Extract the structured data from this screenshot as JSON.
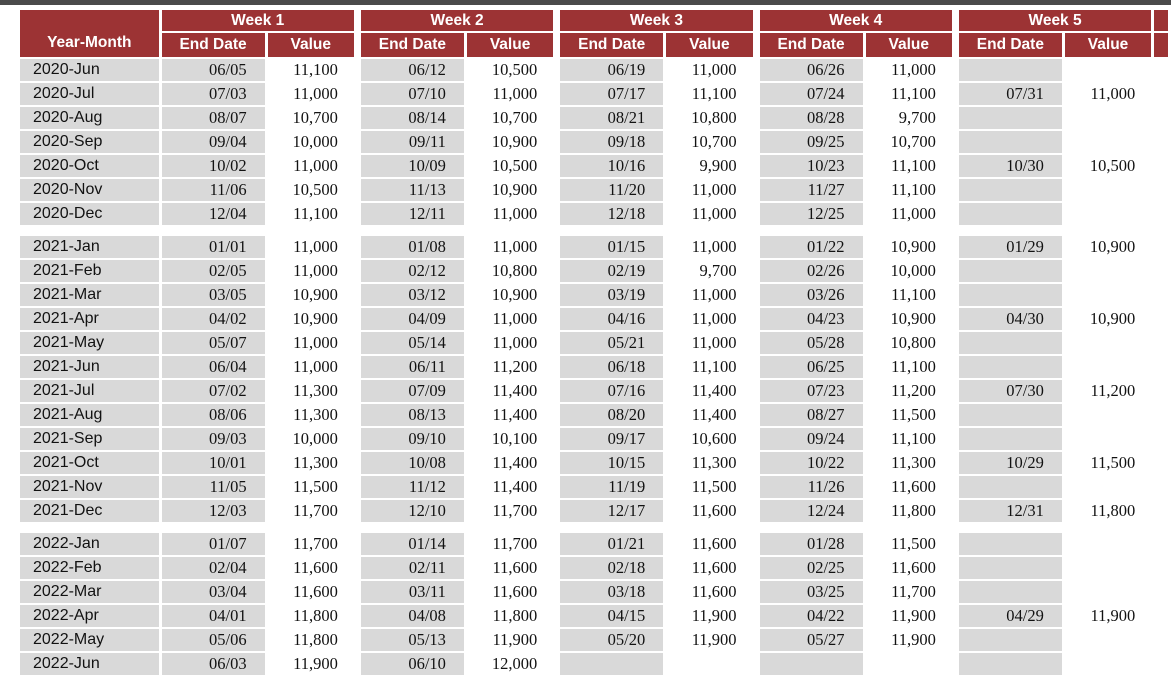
{
  "colors": {
    "header_bg": "#9c3334",
    "header_text": "#ffffff",
    "label_cell_bg": "#d9d9d9",
    "value_cell_bg": "#ffffff",
    "top_bar": "#4a4a4a",
    "data_text": "#121212"
  },
  "table": {
    "row_label_header": "Year-Month",
    "week_headers": [
      "Week 1",
      "Week 2",
      "Week 3",
      "Week 4",
      "Week 5"
    ],
    "sub_headers": {
      "end_date": "End Date",
      "value": "Value"
    },
    "sections": [
      {
        "year": "2020",
        "rows": [
          {
            "label": "2020-Jun",
            "weeks": [
              [
                "06/05",
                "11,100"
              ],
              [
                "06/12",
                "10,500"
              ],
              [
                "06/19",
                "11,000"
              ],
              [
                "06/26",
                "11,000"
              ],
              [
                "",
                ""
              ]
            ]
          },
          {
            "label": "2020-Jul",
            "weeks": [
              [
                "07/03",
                "11,000"
              ],
              [
                "07/10",
                "11,000"
              ],
              [
                "07/17",
                "11,100"
              ],
              [
                "07/24",
                "11,100"
              ],
              [
                "07/31",
                "11,000"
              ]
            ]
          },
          {
            "label": "2020-Aug",
            "weeks": [
              [
                "08/07",
                "10,700"
              ],
              [
                "08/14",
                "10,700"
              ],
              [
                "08/21",
                "10,800"
              ],
              [
                "08/28",
                "9,700"
              ],
              [
                "",
                ""
              ]
            ]
          },
          {
            "label": "2020-Sep",
            "weeks": [
              [
                "09/04",
                "10,000"
              ],
              [
                "09/11",
                "10,900"
              ],
              [
                "09/18",
                "10,700"
              ],
              [
                "09/25",
                "10,700"
              ],
              [
                "",
                ""
              ]
            ]
          },
          {
            "label": "2020-Oct",
            "weeks": [
              [
                "10/02",
                "11,000"
              ],
              [
                "10/09",
                "10,500"
              ],
              [
                "10/16",
                "9,900"
              ],
              [
                "10/23",
                "11,100"
              ],
              [
                "10/30",
                "10,500"
              ]
            ]
          },
          {
            "label": "2020-Nov",
            "weeks": [
              [
                "11/06",
                "10,500"
              ],
              [
                "11/13",
                "10,900"
              ],
              [
                "11/20",
                "11,000"
              ],
              [
                "11/27",
                "11,100"
              ],
              [
                "",
                ""
              ]
            ]
          },
          {
            "label": "2020-Dec",
            "weeks": [
              [
                "12/04",
                "11,100"
              ],
              [
                "12/11",
                "11,000"
              ],
              [
                "12/18",
                "11,000"
              ],
              [
                "12/25",
                "11,000"
              ],
              [
                "",
                ""
              ]
            ]
          }
        ]
      },
      {
        "year": "2021",
        "rows": [
          {
            "label": "2021-Jan",
            "weeks": [
              [
                "01/01",
                "11,000"
              ],
              [
                "01/08",
                "11,000"
              ],
              [
                "01/15",
                "11,000"
              ],
              [
                "01/22",
                "10,900"
              ],
              [
                "01/29",
                "10,900"
              ]
            ]
          },
          {
            "label": "2021-Feb",
            "weeks": [
              [
                "02/05",
                "11,000"
              ],
              [
                "02/12",
                "10,800"
              ],
              [
                "02/19",
                "9,700"
              ],
              [
                "02/26",
                "10,000"
              ],
              [
                "",
                ""
              ]
            ]
          },
          {
            "label": "2021-Mar",
            "weeks": [
              [
                "03/05",
                "10,900"
              ],
              [
                "03/12",
                "10,900"
              ],
              [
                "03/19",
                "11,000"
              ],
              [
                "03/26",
                "11,100"
              ],
              [
                "",
                ""
              ]
            ]
          },
          {
            "label": "2021-Apr",
            "weeks": [
              [
                "04/02",
                "10,900"
              ],
              [
                "04/09",
                "11,000"
              ],
              [
                "04/16",
                "11,000"
              ],
              [
                "04/23",
                "10,900"
              ],
              [
                "04/30",
                "10,900"
              ]
            ]
          },
          {
            "label": "2021-May",
            "weeks": [
              [
                "05/07",
                "11,000"
              ],
              [
                "05/14",
                "11,000"
              ],
              [
                "05/21",
                "11,000"
              ],
              [
                "05/28",
                "10,800"
              ],
              [
                "",
                ""
              ]
            ]
          },
          {
            "label": "2021-Jun",
            "weeks": [
              [
                "06/04",
                "11,000"
              ],
              [
                "06/11",
                "11,200"
              ],
              [
                "06/18",
                "11,100"
              ],
              [
                "06/25",
                "11,100"
              ],
              [
                "",
                ""
              ]
            ]
          },
          {
            "label": "2021-Jul",
            "weeks": [
              [
                "07/02",
                "11,300"
              ],
              [
                "07/09",
                "11,400"
              ],
              [
                "07/16",
                "11,400"
              ],
              [
                "07/23",
                "11,200"
              ],
              [
                "07/30",
                "11,200"
              ]
            ]
          },
          {
            "label": "2021-Aug",
            "weeks": [
              [
                "08/06",
                "11,300"
              ],
              [
                "08/13",
                "11,400"
              ],
              [
                "08/20",
                "11,400"
              ],
              [
                "08/27",
                "11,500"
              ],
              [
                "",
                ""
              ]
            ]
          },
          {
            "label": "2021-Sep",
            "weeks": [
              [
                "09/03",
                "10,000"
              ],
              [
                "09/10",
                "10,100"
              ],
              [
                "09/17",
                "10,600"
              ],
              [
                "09/24",
                "11,100"
              ],
              [
                "",
                ""
              ]
            ]
          },
          {
            "label": "2021-Oct",
            "weeks": [
              [
                "10/01",
                "11,300"
              ],
              [
                "10/08",
                "11,400"
              ],
              [
                "10/15",
                "11,300"
              ],
              [
                "10/22",
                "11,300"
              ],
              [
                "10/29",
                "11,500"
              ]
            ]
          },
          {
            "label": "2021-Nov",
            "weeks": [
              [
                "11/05",
                "11,500"
              ],
              [
                "11/12",
                "11,400"
              ],
              [
                "11/19",
                "11,500"
              ],
              [
                "11/26",
                "11,600"
              ],
              [
                "",
                ""
              ]
            ]
          },
          {
            "label": "2021-Dec",
            "weeks": [
              [
                "12/03",
                "11,700"
              ],
              [
                "12/10",
                "11,700"
              ],
              [
                "12/17",
                "11,600"
              ],
              [
                "12/24",
                "11,800"
              ],
              [
                "12/31",
                "11,800"
              ]
            ]
          }
        ]
      },
      {
        "year": "2022",
        "rows": [
          {
            "label": "2022-Jan",
            "weeks": [
              [
                "01/07",
                "11,700"
              ],
              [
                "01/14",
                "11,700"
              ],
              [
                "01/21",
                "11,600"
              ],
              [
                "01/28",
                "11,500"
              ],
              [
                "",
                ""
              ]
            ]
          },
          {
            "label": "2022-Feb",
            "weeks": [
              [
                "02/04",
                "11,600"
              ],
              [
                "02/11",
                "11,600"
              ],
              [
                "02/18",
                "11,600"
              ],
              [
                "02/25",
                "11,600"
              ],
              [
                "",
                ""
              ]
            ]
          },
          {
            "label": "2022-Mar",
            "weeks": [
              [
                "03/04",
                "11,600"
              ],
              [
                "03/11",
                "11,600"
              ],
              [
                "03/18",
                "11,600"
              ],
              [
                "03/25",
                "11,700"
              ],
              [
                "",
                ""
              ]
            ]
          },
          {
            "label": "2022-Apr",
            "weeks": [
              [
                "04/01",
                "11,800"
              ],
              [
                "04/08",
                "11,800"
              ],
              [
                "04/15",
                "11,900"
              ],
              [
                "04/22",
                "11,900"
              ],
              [
                "04/29",
                "11,900"
              ]
            ]
          },
          {
            "label": "2022-May",
            "weeks": [
              [
                "05/06",
                "11,800"
              ],
              [
                "05/13",
                "11,900"
              ],
              [
                "05/20",
                "11,900"
              ],
              [
                "05/27",
                "11,900"
              ],
              [
                "",
                ""
              ]
            ]
          },
          {
            "label": "2022-Jun",
            "weeks": [
              [
                "06/03",
                "11,900"
              ],
              [
                "06/10",
                "12,000"
              ],
              [
                "",
                ""
              ],
              [
                "",
                ""
              ],
              [
                "",
                ""
              ]
            ]
          }
        ]
      }
    ]
  }
}
